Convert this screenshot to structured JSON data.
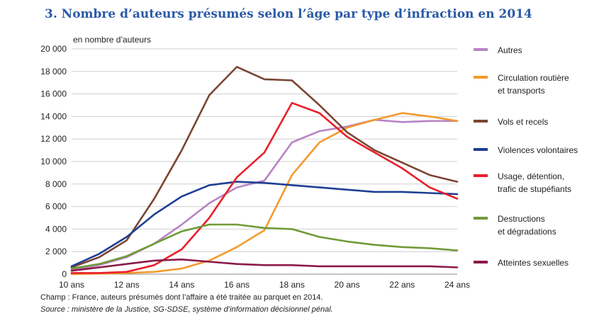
{
  "title": "3. Nombre d’auteurs présumés selon l’âge par type d’infraction en 2014",
  "notes": {
    "champ": "Champ : France, auteurs présumés dont l’affaire a été traitée au parquet en 2014.",
    "source": "Source : ministère de la Justice, SG-SDSE, système d’information décisionnel pénal."
  },
  "chart_data": {
    "type": "line",
    "ylabel": "en nombre d’auteurs",
    "xlabel": "",
    "x": [
      10,
      11,
      12,
      13,
      14,
      15,
      16,
      17,
      18,
      19,
      20,
      21,
      22,
      23,
      24
    ],
    "xlim": [
      10,
      24
    ],
    "ylim": [
      0,
      20000
    ],
    "x_ticks": [
      10,
      12,
      14,
      16,
      18,
      20,
      22,
      24
    ],
    "x_tick_labels": [
      "10 ans",
      "12 ans",
      "14 ans",
      "16 ans",
      "18 ans",
      "20 ans",
      "22 ans",
      "24 ans"
    ],
    "y_ticks": [
      0,
      2000,
      4000,
      6000,
      8000,
      10000,
      12000,
      14000,
      16000,
      18000,
      20000
    ],
    "y_tick_labels": [
      "0",
      "2 000",
      "4 000",
      "6 000",
      "8 000",
      "10 000",
      "12 000",
      "14 000",
      "16 000",
      "18 000",
      "20 000"
    ],
    "grid": "horizontal",
    "legend_position": "right",
    "series": [
      {
        "name": "Autres",
        "color": "#b784c4",
        "values": [
          400,
          800,
          1500,
          2700,
          4400,
          6300,
          7700,
          8300,
          11700,
          12700,
          13100,
          13700,
          13500,
          13600,
          13600
        ]
      },
      {
        "name": "Circulation routière\net transports",
        "color": "#f39a2d",
        "values": [
          0,
          50,
          100,
          200,
          500,
          1200,
          2400,
          3900,
          8800,
          11700,
          13000,
          13700,
          14300,
          14000,
          13600
        ]
      },
      {
        "name": "Vols et recels",
        "color": "#7a4533",
        "values": [
          600,
          1500,
          3000,
          6700,
          11000,
          15900,
          18400,
          17300,
          17200,
          15000,
          12600,
          11000,
          9900,
          8800,
          8200
        ]
      },
      {
        "name": "Violences volontaires",
        "color": "#1f3f93",
        "values": [
          700,
          1800,
          3300,
          5300,
          6900,
          7900,
          8200,
          8100,
          7900,
          7700,
          7500,
          7300,
          7300,
          7200,
          7100
        ]
      },
      {
        "name": "Usage, détention,\ntrafic de stupéfiants",
        "color": "#e8202a",
        "values": [
          100,
          100,
          200,
          800,
          2200,
          5000,
          8600,
          10800,
          15200,
          14300,
          12200,
          10800,
          9400,
          7700,
          6700
        ]
      },
      {
        "name": "Destructions\net dégradations",
        "color": "#6f9b37",
        "values": [
          500,
          900,
          1600,
          2700,
          3800,
          4400,
          4400,
          4100,
          4000,
          3300,
          2900,
          2600,
          2400,
          2300,
          2100
        ]
      },
      {
        "name": "Atteintes sexuelles",
        "color": "#8b1a4a",
        "values": [
          300,
          600,
          900,
          1200,
          1300,
          1100,
          900,
          800,
          800,
          700,
          700,
          700,
          700,
          700,
          600
        ]
      }
    ]
  }
}
